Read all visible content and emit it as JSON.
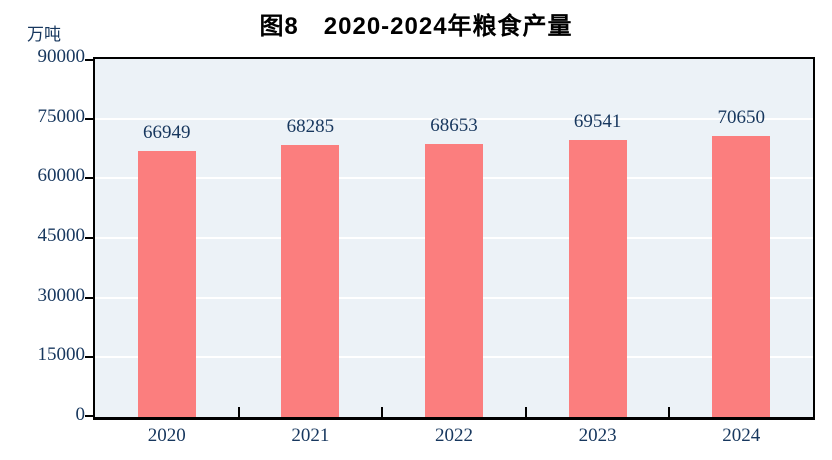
{
  "chart_data": {
    "type": "bar",
    "title": "图8　2020-2024年粮食产量",
    "unit_label": "万吨",
    "categories": [
      "2020",
      "2021",
      "2022",
      "2023",
      "2024"
    ],
    "values": [
      66949,
      68285,
      68653,
      69541,
      70650
    ],
    "xlabel": "",
    "ylabel": "万吨",
    "ylim": [
      0,
      90000
    ],
    "yticks": [
      0,
      15000,
      30000,
      45000,
      60000,
      75000,
      90000
    ],
    "grid": true,
    "gridline_orientation": "horizontal",
    "legend": "none",
    "colors": {
      "bar": "#FB7E7E",
      "plot_background": "#ECF2F7",
      "gridline": "#FFFFFF",
      "axis": "#000000",
      "tick_label": "#17375E",
      "value_label": "#17375E",
      "title": "#000000"
    }
  }
}
